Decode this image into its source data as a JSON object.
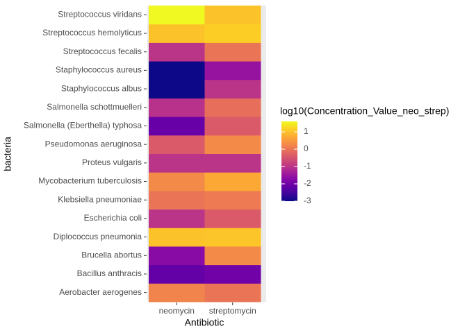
{
  "chart_data": {
    "type": "heatmap",
    "x_label": "Antibiotic",
    "y_label": "bacteria",
    "legend_title": "log10(Concentration_Value_neo_strep)",
    "colorscale": "plasma",
    "x": [
      "neomycin",
      "streptomycin"
    ],
    "y": [
      "Aerobacter aerogenes",
      "Bacillus anthracis",
      "Brucella abortus",
      "Diplococcus pneumonia",
      "Escherichia coli",
      "Klebsiella pneumoniae",
      "Mycobacterium tuberculosis",
      "Proteus vulgaris",
      "Pseudomonas aeruginosa",
      "Salmonella (Eberthella) typhosa",
      "Salmonella schottmuelleri",
      "Staphylococcus albus",
      "Staphylococcus aureus",
      "Streptococcus fecalis",
      "Streptococcus hemolyticus",
      "Streptococcus viridans"
    ],
    "values": [
      [
        0.204,
        0
      ],
      [
        -2.155,
        -2
      ],
      [
        -1.699,
        0.301
      ],
      [
        1,
        1.041
      ],
      [
        -1,
        -0.398
      ],
      [
        0,
        0.079
      ],
      [
        0.301,
        0.699
      ],
      [
        -1,
        -1
      ],
      [
        -0.398,
        0.301
      ],
      [
        -2.097,
        -0.398
      ],
      [
        -1.046,
        -0.097
      ],
      [
        -3,
        -1
      ],
      [
        -3,
        -1.523
      ],
      [
        -1,
        0
      ],
      [
        1,
        1.146
      ],
      [
        1.602,
        1
      ]
    ],
    "clim": [
      -3,
      1.602
    ],
    "cticks": [
      1,
      0,
      -1,
      -2,
      -3
    ]
  }
}
